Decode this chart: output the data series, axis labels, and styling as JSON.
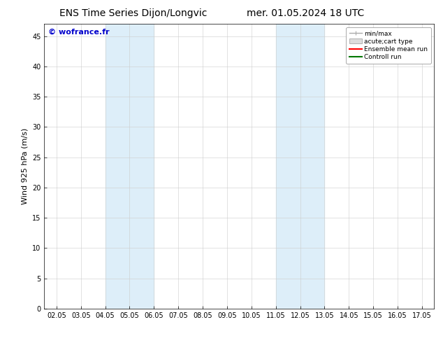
{
  "title_left": "ENS Time Series Dijon/Longvic",
  "title_right": "mer. 01.05.2024 18 UTC",
  "ylabel": "Wind 925 hPa (m/s)",
  "watermark": "© wofrance.fr",
  "xlim": [
    0,
    15
  ],
  "ylim": [
    0,
    47
  ],
  "xtick_labels": [
    "02.05",
    "03.05",
    "04.05",
    "05.05",
    "06.05",
    "07.05",
    "08.05",
    "09.05",
    "10.05",
    "11.05",
    "12.05",
    "13.05",
    "14.05",
    "15.05",
    "16.05",
    "17.05"
  ],
  "ytick_values": [
    0,
    5,
    10,
    15,
    20,
    25,
    30,
    35,
    40,
    45
  ],
  "shaded_bands": [
    {
      "xmin": 2,
      "xmax": 4,
      "color": "#ddeef9"
    },
    {
      "xmin": 9,
      "xmax": 11,
      "color": "#ddeef9"
    }
  ],
  "legend_entries": [
    {
      "label": "min/max",
      "color": "#aaaaaa",
      "lw": 1.0,
      "style": "minmax"
    },
    {
      "label": "acute;cart type",
      "color": "#dddddd",
      "lw": 4,
      "style": "fill"
    },
    {
      "label": "Ensemble mean run",
      "color": "#ff0000",
      "lw": 1.5,
      "style": "line"
    },
    {
      "label": "Controll run",
      "color": "#007700",
      "lw": 1.5,
      "style": "line"
    }
  ],
  "bg_color": "#ffffff",
  "title_fontsize": 10,
  "axis_fontsize": 8,
  "tick_fontsize": 7,
  "watermark_color": "#0000cc",
  "watermark_fontsize": 8,
  "grid_color": "#cccccc",
  "grid_lw": 0.4
}
